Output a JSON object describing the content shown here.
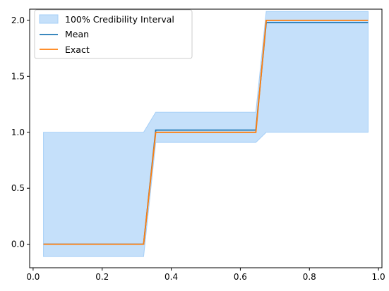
{
  "chart_data": {
    "type": "line",
    "title": "",
    "xlabel": "",
    "ylabel": "",
    "xlim": [
      -0.01,
      1.01
    ],
    "ylim": [
      -0.21,
      2.1
    ],
    "xticks": [
      0.0,
      0.2,
      0.4,
      0.6,
      0.8,
      1.0
    ],
    "xtick_labels": [
      "0.0",
      "0.2",
      "0.4",
      "0.6",
      "0.8",
      "1.0"
    ],
    "yticks": [
      0.0,
      0.5,
      1.0,
      1.5,
      2.0
    ],
    "ytick_labels": [
      "0.0",
      "0.5",
      "1.0",
      "1.5",
      "2.0"
    ],
    "grid": false,
    "legend_position": "upper-left",
    "interval": {
      "name": "100% Credibility Interval",
      "color": "#a6cff7",
      "x": [
        0.03,
        0.32,
        0.355,
        0.645,
        0.675,
        0.97
      ],
      "lower": [
        -0.11,
        -0.11,
        0.91,
        0.91,
        1.0,
        1.0
      ],
      "upper": [
        1.0,
        1.0,
        1.18,
        1.18,
        2.08,
        2.08
      ]
    },
    "series": [
      {
        "name": "Mean",
        "color": "#1f77b4",
        "x": [
          0.03,
          0.32,
          0.355,
          0.645,
          0.675,
          0.97
        ],
        "y": [
          0.0,
          0.0,
          1.02,
          1.02,
          1.98,
          1.98
        ]
      },
      {
        "name": "Exact",
        "color": "#ff7f0e",
        "x": [
          0.03,
          0.32,
          0.355,
          0.645,
          0.675,
          0.97
        ],
        "y": [
          0.0,
          0.0,
          1.0,
          1.0,
          2.0,
          2.0
        ]
      }
    ]
  }
}
